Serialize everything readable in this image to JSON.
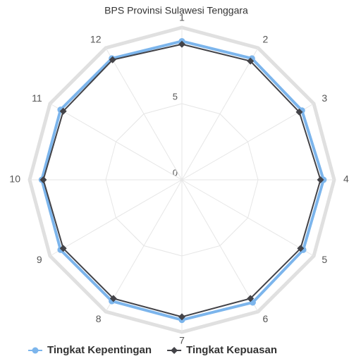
{
  "chart_data": {
    "type": "radar",
    "title": "BPS Provinsi Sulawesi Tenggara",
    "categories": [
      "1",
      "2",
      "3",
      "4",
      "5",
      "6",
      "7",
      "8",
      "9",
      "10",
      "11",
      "12"
    ],
    "series": [
      {
        "name": "Tingkat Kepentingan",
        "color": "#7cb5ec",
        "marker": "circle",
        "values": [
          9.1,
          9.2,
          9.1,
          9.3,
          9.2,
          9.3,
          9.2,
          9.2,
          9.2,
          9.2,
          9.2,
          9.2
        ]
      },
      {
        "name": "Tingkat Kepuasan",
        "color": "#434348",
        "marker": "diamond",
        "values": [
          8.9,
          9.0,
          8.9,
          9.1,
          9.0,
          9.0,
          9.0,
          9.0,
          9.0,
          9.1,
          9.0,
          9.1
        ]
      }
    ],
    "ylim": [
      0,
      10
    ],
    "yticks": [
      0,
      5
    ],
    "grid": true,
    "legend": "bottom"
  }
}
